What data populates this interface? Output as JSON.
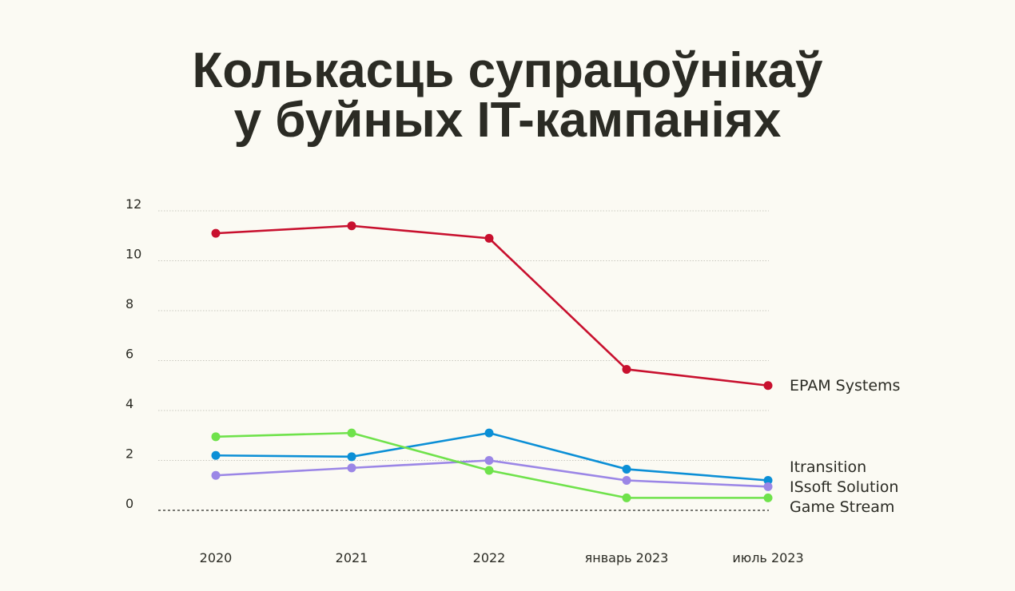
{
  "title_line1": "Колькасць супрацоўнікаў",
  "title_line2": "у буйных IT-кампаніях",
  "chart_data": {
    "type": "line",
    "categories": [
      "2020",
      "2021",
      "2022",
      "январь 2023",
      "июль 2023"
    ],
    "yticks": [
      "0",
      "2",
      "4",
      "6",
      "8",
      "10",
      "12"
    ],
    "ylim": [
      0,
      12
    ],
    "grid": "horizontal-dotted",
    "legend": "right, labels at line ends",
    "series": [
      {
        "name": "EPAM Systems",
        "color": "#c8102e",
        "values": [
          11.1,
          11.4,
          10.9,
          5.65,
          5.0
        ]
      },
      {
        "name": "Itransition",
        "color": "#0b8fd6",
        "values": [
          2.2,
          2.15,
          3.1,
          1.65,
          1.2
        ]
      },
      {
        "name": "ISsoft Solution",
        "color": "#9b86e6",
        "values": [
          1.4,
          1.7,
          2.0,
          1.2,
          0.95
        ]
      },
      {
        "name": "Game Stream",
        "color": "#6fe24b",
        "values": [
          2.95,
          3.1,
          1.6,
          0.5,
          0.5
        ]
      }
    ]
  }
}
